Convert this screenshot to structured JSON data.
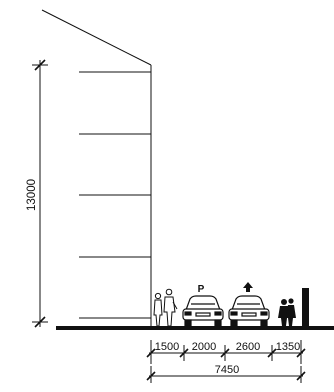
{
  "diagram": {
    "type": "street-section",
    "building_height": {
      "value": 13000,
      "label": "13000"
    },
    "segments": [
      {
        "label": "1500"
      },
      {
        "label": "2000"
      },
      {
        "label": "2600"
      },
      {
        "label": "1350"
      }
    ],
    "total_width": {
      "label": "7450"
    },
    "parking_symbol": "P",
    "direction_symbol": "arrow-up-icon",
    "colors": {
      "ink": "#111111",
      "ground": "#111111",
      "background": "#ffffff"
    }
  }
}
